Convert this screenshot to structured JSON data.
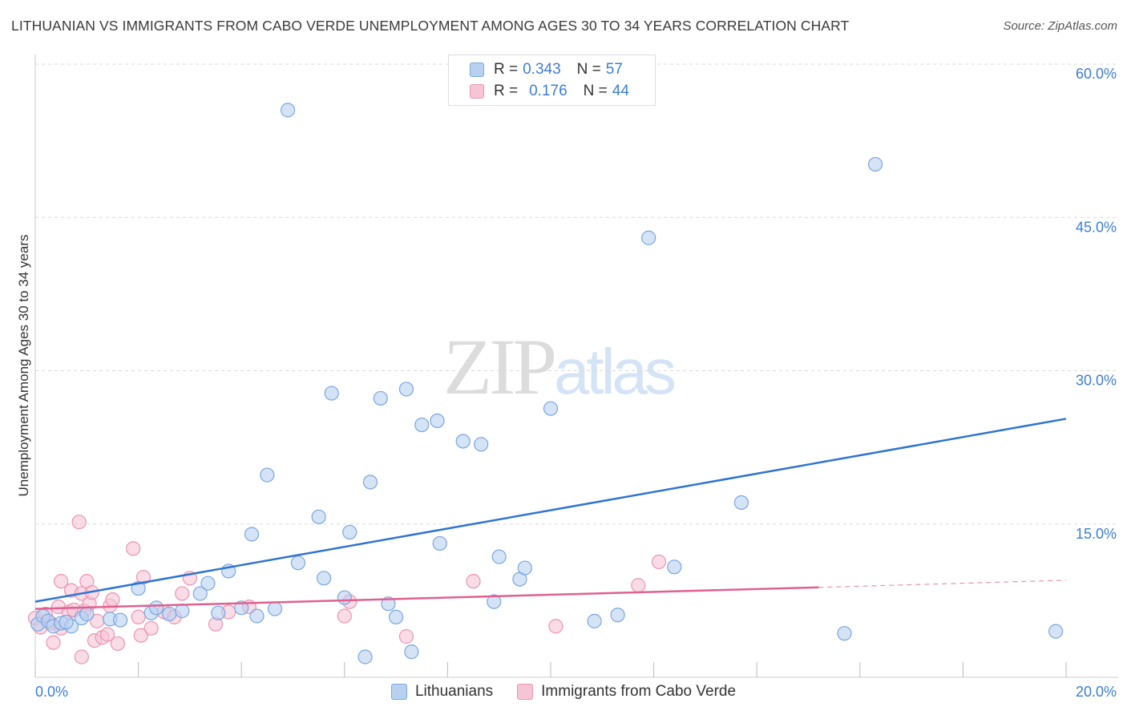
{
  "header": {
    "title": "LITHUANIAN VS IMMIGRANTS FROM CABO VERDE UNEMPLOYMENT AMONG AGES 30 TO 34 YEARS CORRELATION CHART",
    "source": "Source: ZipAtlas.com"
  },
  "watermark": {
    "zip": "ZIP",
    "atlas": "atlas"
  },
  "legend": {
    "rows": [
      {
        "r_label": "R =",
        "r_value": "0.343",
        "n_label": "N =",
        "n_value": "57"
      },
      {
        "r_label": "R =",
        "r_value": "0.176",
        "n_label": "N =",
        "n_value": "44"
      }
    ]
  },
  "bottom_legend": {
    "series_1": "Lithuanians",
    "series_2": "Immigrants from Cabo Verde"
  },
  "colors": {
    "blue_fill": "#b9d1f1",
    "blue_stroke": "#7aa6e0",
    "blue_line": "#2f74d0",
    "pink_fill": "#f6c5d5",
    "pink_stroke": "#ec93b3",
    "pink_line": "#e06090",
    "grid": "#d9d9d9",
    "tick_text": "#3b7dd8"
  },
  "chart_data": {
    "type": "scatter",
    "title": "LITHUANIAN VS IMMIGRANTS FROM CABO VERDE UNEMPLOYMENT AMONG AGES 30 TO 34 YEARS CORRELATION CHART",
    "xlabel": "",
    "ylabel": "Unemployment Among Ages 30 to 34 years",
    "xlim": [
      0,
      20
    ],
    "ylim": [
      0,
      63
    ],
    "x_tick_labels": [
      "0.0%",
      "20.0%"
    ],
    "y_ticks": [
      15,
      30,
      45,
      60
    ],
    "y_tick_labels": [
      "15.0%",
      "30.0%",
      "45.0%",
      "60.0%"
    ],
    "grid": true,
    "legend_position": "top-center",
    "series": [
      {
        "name": "Lithuanians",
        "r": 0.343,
        "n": 57,
        "trend": {
          "x": [
            0,
            20
          ],
          "y": [
            7.4,
            25.3
          ]
        },
        "points": [
          [
            0.05,
            5.2
          ],
          [
            0.15,
            6.0
          ],
          [
            0.25,
            5.5
          ],
          [
            0.35,
            5.0
          ],
          [
            0.5,
            5.3
          ],
          [
            0.7,
            5.0
          ],
          [
            0.9,
            5.8
          ],
          [
            1.0,
            6.2
          ],
          [
            1.45,
            5.7
          ],
          [
            1.65,
            5.6
          ],
          [
            2.0,
            8.7
          ],
          [
            2.25,
            6.3
          ],
          [
            2.35,
            6.8
          ],
          [
            2.6,
            6.2
          ],
          [
            2.85,
            6.5
          ],
          [
            3.2,
            8.2
          ],
          [
            3.35,
            9.2
          ],
          [
            3.55,
            6.3
          ],
          [
            3.75,
            10.4
          ],
          [
            4.0,
            6.8
          ],
          [
            4.2,
            14.0
          ],
          [
            4.3,
            6.0
          ],
          [
            4.5,
            19.8
          ],
          [
            4.65,
            6.7
          ],
          [
            4.9,
            55.5
          ],
          [
            5.1,
            11.2
          ],
          [
            5.5,
            15.7
          ],
          [
            5.6,
            9.7
          ],
          [
            5.75,
            27.8
          ],
          [
            6.0,
            7.8
          ],
          [
            6.1,
            14.2
          ],
          [
            6.4,
            2.0
          ],
          [
            6.5,
            19.1
          ],
          [
            6.7,
            27.3
          ],
          [
            6.85,
            7.2
          ],
          [
            7.0,
            5.9
          ],
          [
            7.2,
            28.2
          ],
          [
            7.3,
            2.5
          ],
          [
            7.5,
            24.7
          ],
          [
            7.8,
            25.1
          ],
          [
            7.85,
            13.1
          ],
          [
            8.3,
            23.1
          ],
          [
            8.65,
            22.8
          ],
          [
            8.9,
            7.4
          ],
          [
            9.0,
            11.8
          ],
          [
            9.4,
            9.6
          ],
          [
            9.5,
            10.7
          ],
          [
            10.0,
            26.3
          ],
          [
            10.85,
            5.5
          ],
          [
            11.3,
            6.1
          ],
          [
            11.9,
            43.0
          ],
          [
            12.4,
            10.8
          ],
          [
            13.7,
            17.1
          ],
          [
            15.7,
            4.3
          ],
          [
            16.3,
            50.2
          ],
          [
            19.8,
            4.5
          ],
          [
            0.6,
            5.4
          ]
        ]
      },
      {
        "name": "Immigrants from Cabo Verde",
        "r": 0.176,
        "n": 44,
        "trend": {
          "x": [
            0,
            15.2
          ],
          "y": [
            6.7,
            8.8
          ]
        },
        "trend_extension": {
          "x": [
            15.2,
            20
          ],
          "y": [
            8.8,
            9.5
          ]
        },
        "points": [
          [
            0.0,
            5.8
          ],
          [
            0.1,
            4.9
          ],
          [
            0.2,
            6.2
          ],
          [
            0.3,
            5.3
          ],
          [
            0.35,
            3.4
          ],
          [
            0.45,
            6.9
          ],
          [
            0.5,
            4.8
          ],
          [
            0.5,
            9.4
          ],
          [
            0.65,
            6.4
          ],
          [
            0.7,
            8.5
          ],
          [
            0.75,
            6.6
          ],
          [
            0.85,
            15.2
          ],
          [
            0.9,
            8.2
          ],
          [
            0.9,
            2.0
          ],
          [
            0.95,
            6.5
          ],
          [
            1.0,
            9.4
          ],
          [
            1.05,
            7.2
          ],
          [
            1.1,
            8.3
          ],
          [
            1.15,
            3.6
          ],
          [
            1.2,
            5.5
          ],
          [
            1.3,
            3.9
          ],
          [
            1.4,
            4.2
          ],
          [
            1.45,
            7.0
          ],
          [
            1.5,
            7.6
          ],
          [
            1.6,
            3.3
          ],
          [
            1.9,
            12.6
          ],
          [
            2.0,
            5.9
          ],
          [
            2.05,
            4.1
          ],
          [
            2.1,
            9.8
          ],
          [
            2.25,
            4.8
          ],
          [
            2.5,
            6.4
          ],
          [
            2.7,
            5.9
          ],
          [
            2.85,
            8.2
          ],
          [
            3.0,
            9.7
          ],
          [
            3.5,
            5.2
          ],
          [
            3.75,
            6.4
          ],
          [
            4.15,
            6.9
          ],
          [
            6.0,
            6.0
          ],
          [
            6.1,
            7.4
          ],
          [
            7.2,
            4.0
          ],
          [
            8.5,
            9.4
          ],
          [
            10.1,
            5.0
          ],
          [
            11.7,
            9.0
          ],
          [
            12.1,
            11.3
          ]
        ]
      }
    ]
  }
}
